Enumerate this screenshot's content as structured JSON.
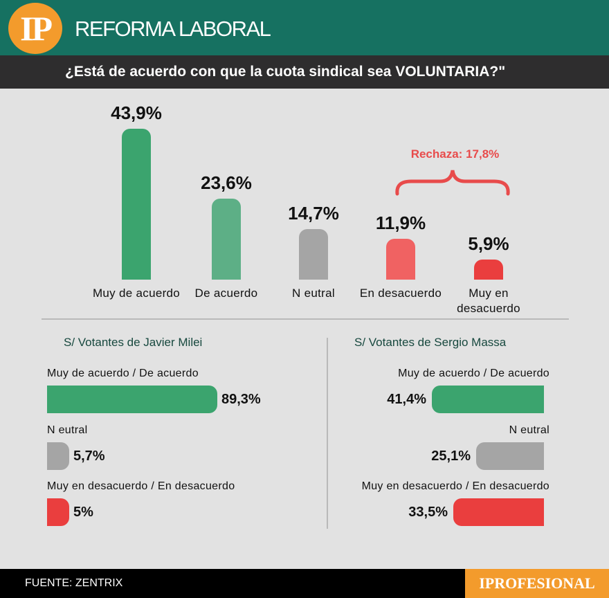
{
  "header": {
    "logo": "IP",
    "title": "REFORMA LABORAL"
  },
  "question": "¿Está de acuerdo con que la cuota sindical sea VOLUNTARIA?\"",
  "chart_data": [
    {
      "type": "bar",
      "title": "¿Está de acuerdo con que la cuota sindical sea VOLUNTARIA?\"",
      "categories": [
        "Muy de acuerdo",
        "De acuerdo",
        "N eutral",
        "En desacuerdo",
        "Muy en desacuerdo"
      ],
      "values": [
        43.9,
        23.6,
        14.7,
        11.9,
        5.9
      ],
      "value_labels": [
        "43,9%",
        "23,6%",
        "14,7%",
        "11,9%",
        "5,9%"
      ],
      "colors": [
        "#3ba46e",
        "#5daf86",
        "#a5a5a5",
        "#f06262",
        "#ea3e3e"
      ],
      "annotation": "Rechaza: 17,8%",
      "ylim": [
        0,
        43.9
      ]
    },
    {
      "type": "bar",
      "orientation": "horizontal",
      "title": "S/ Votantes de Javier Milei",
      "categories": [
        "Muy de acuerdo / De acuerdo",
        "N eutral",
        "Muy en desacuerdo / En desacuerdo"
      ],
      "values": [
        89.3,
        5.7,
        5
      ],
      "value_labels": [
        "89,3%",
        "5,7%",
        "5%"
      ],
      "colors": [
        "#3ba46e",
        "#a5a5a5",
        "#ea3e3e"
      ]
    },
    {
      "type": "bar",
      "orientation": "horizontal",
      "title": "S/ Votantes de Sergio Massa",
      "categories": [
        "Muy de acuerdo  / De acuerdo",
        "N eutral",
        "Muy en desacuerdo / En desacuerdo"
      ],
      "values": [
        41.4,
        25.1,
        33.5
      ],
      "value_labels": [
        "41,4%",
        "25,1%",
        "33,5%"
      ],
      "colors": [
        "#3ba46e",
        "#a5a5a5",
        "#ea3e3e"
      ]
    }
  ],
  "footer": {
    "source": "FUENTE: ZENTRIX",
    "brand": "IPROFESIONAL"
  }
}
